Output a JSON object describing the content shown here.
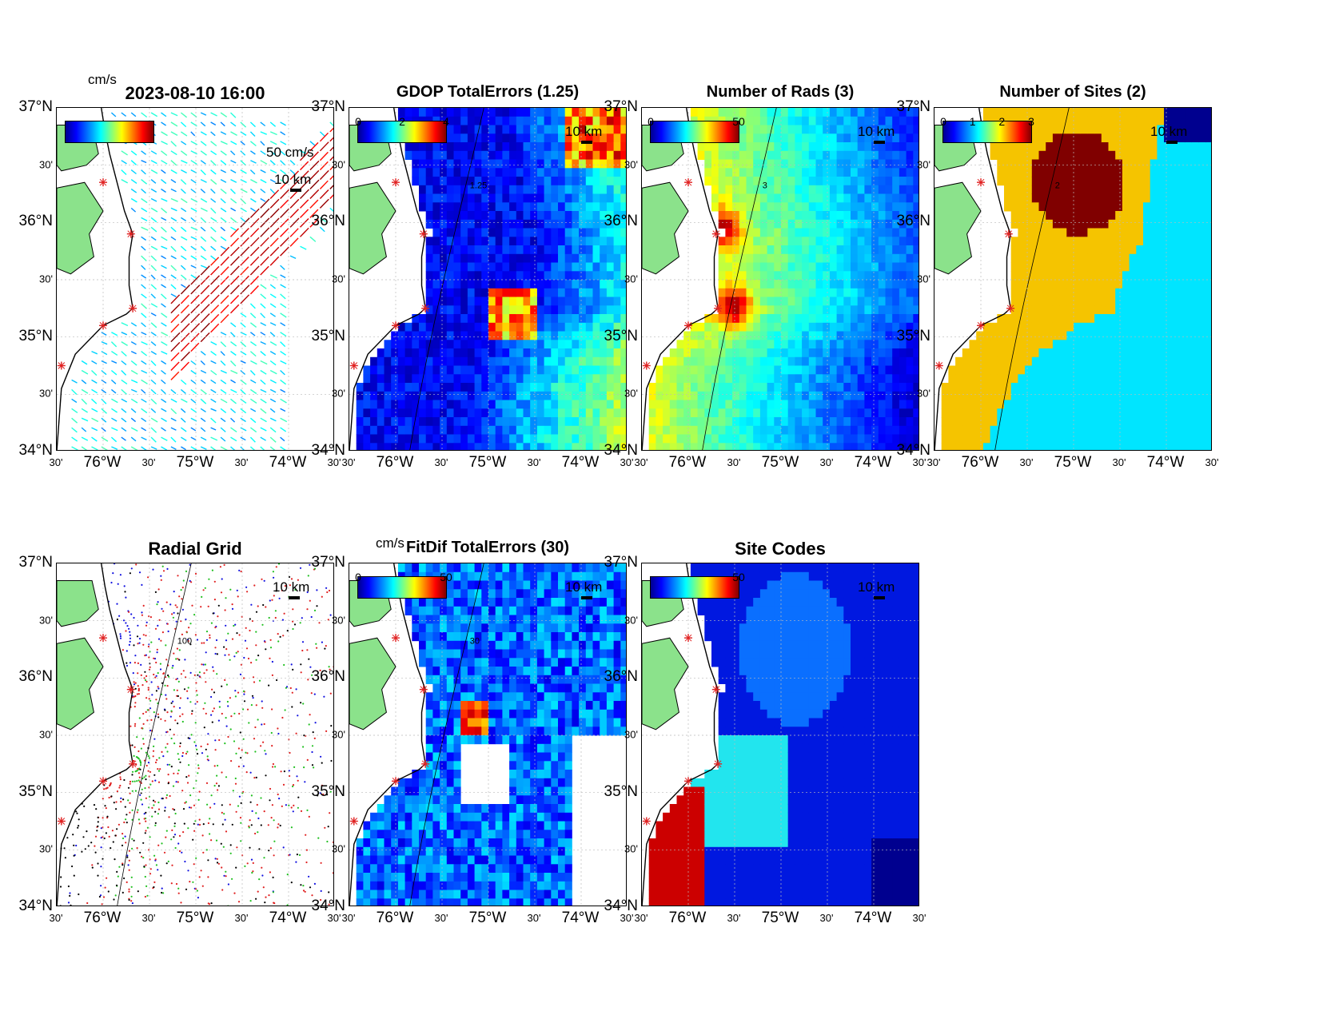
{
  "figure": {
    "timestamp": "2023-08-10 16:00",
    "unit_label": "cm/s"
  },
  "axes": {
    "lat_labels": [
      "37°N",
      "30'",
      "36°N",
      "30'",
      "35°N",
      "30'",
      "34°N"
    ],
    "lon_labels": [
      "30'",
      "76°W",
      "30'",
      "75°W",
      "30'",
      "74°W",
      "30'"
    ],
    "lat_range": [
      34,
      37
    ],
    "lon_range": [
      -76.5,
      -73.5
    ]
  },
  "scale_bar": "10 km",
  "stations": [
    {
      "lon": -76.0,
      "lat": 36.35
    },
    {
      "lon": -75.7,
      "lat": 35.9
    },
    {
      "lon": -75.68,
      "lat": 35.25
    },
    {
      "lon": -76.0,
      "lat": 35.1
    },
    {
      "lon": -76.45,
      "lat": 34.75
    }
  ],
  "panels": [
    {
      "id": "totals",
      "title": "",
      "cbar_ticks": [],
      "extra_text": "50 cm/s",
      "kind": "vectors"
    },
    {
      "id": "gdop",
      "title": "GDOP TotalErrors (1.25)",
      "cbar_ticks": [
        "0",
        "2",
        "4"
      ],
      "kind": "heat",
      "contour": "1.25"
    },
    {
      "id": "rads",
      "title": "Number of Rads (3)",
      "cbar_ticks": [
        "0",
        "50"
      ],
      "kind": "heat",
      "contour": "3"
    },
    {
      "id": "sites",
      "title": "Number of Sites (2)",
      "cbar_ticks": [
        "0",
        "1",
        "2",
        "3"
      ],
      "kind": "sites",
      "contour": "2"
    },
    {
      "id": "radial",
      "title": "Radial Grid",
      "cbar_ticks": [],
      "kind": "radial",
      "contour": "100"
    },
    {
      "id": "fitdif",
      "title": "FitDif TotalErrors (30)",
      "cbar_ticks": [
        "0",
        "50"
      ],
      "kind": "heat",
      "contour": "30",
      "unit_label": "cm/s"
    },
    {
      "id": "codes",
      "title": "Site Codes",
      "cbar_ticks": [
        "50"
      ],
      "kind": "codes"
    }
  ],
  "colors": {
    "land": "#8be28b",
    "coast": "#000000",
    "sites_dark": "#800000",
    "sites_mid": "#f5c400",
    "sites_low": "#00e5ff",
    "sites_none": "#00008f"
  }
}
